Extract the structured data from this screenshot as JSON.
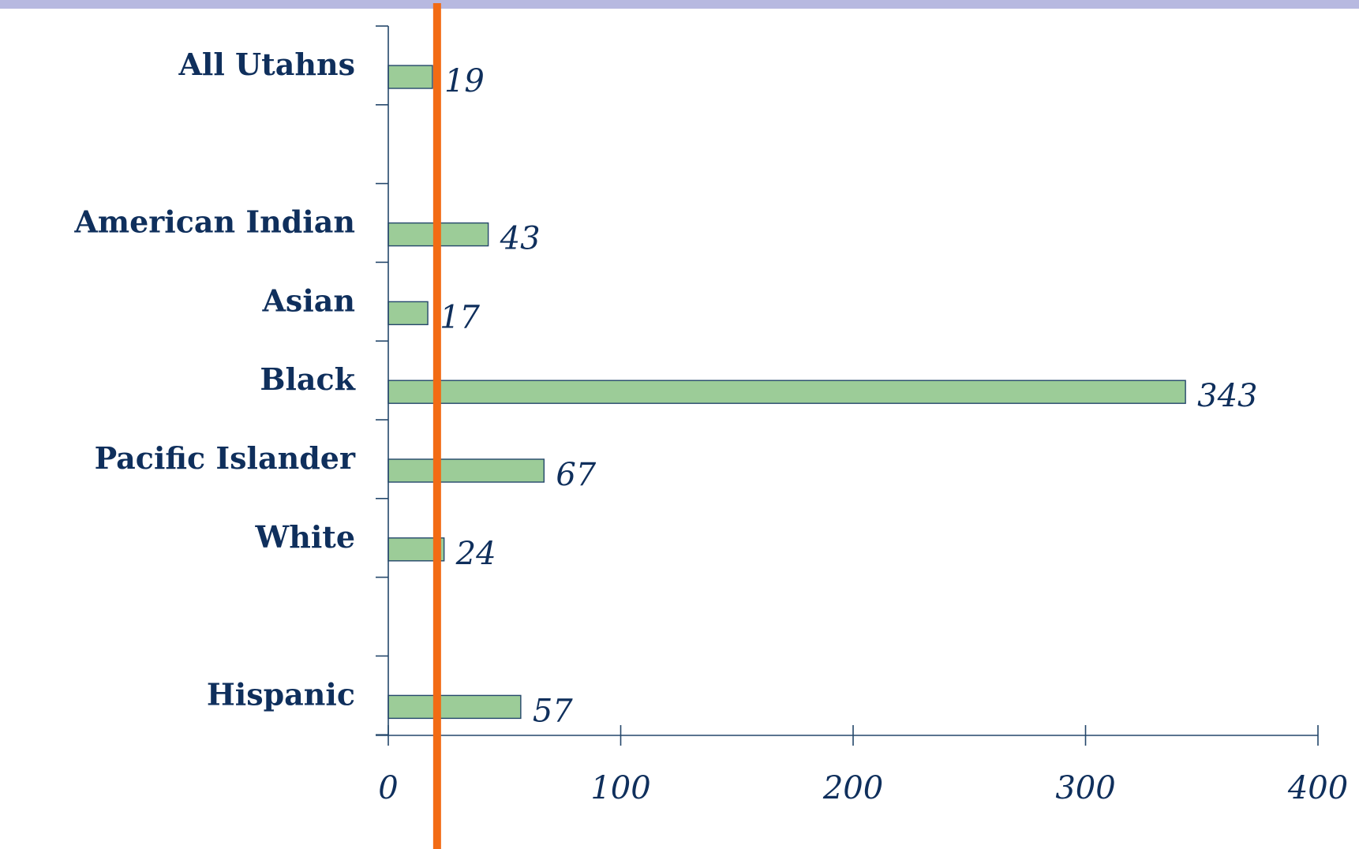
{
  "colors": {
    "top_band": "#b7b9e0",
    "bar_fill": "#9ccc98",
    "bar_stroke": "#24476b",
    "axis": "#24476b",
    "text": "#0f2f5c",
    "reference_line": "#f26b14"
  },
  "chart_data": {
    "type": "bar",
    "orientation": "horizontal",
    "categories": [
      "All Utahns",
      "American Indian",
      "Asian",
      "Black",
      "Pacific Islander",
      "White",
      "Hispanic"
    ],
    "values": [
      19,
      43,
      17,
      343,
      67,
      24,
      57
    ],
    "data_labels": [
      "19",
      "43",
      "17",
      "343",
      "67",
      "24",
      "57"
    ],
    "xlim": [
      0,
      400
    ],
    "x_ticks": [
      0,
      100,
      200,
      300,
      400
    ],
    "x_tick_labels": [
      "0",
      "100",
      "200",
      "300",
      "400"
    ],
    "reference_line": 21,
    "grid": false,
    "legend": "none",
    "title": "",
    "xlabel": "",
    "ylabel": ""
  }
}
